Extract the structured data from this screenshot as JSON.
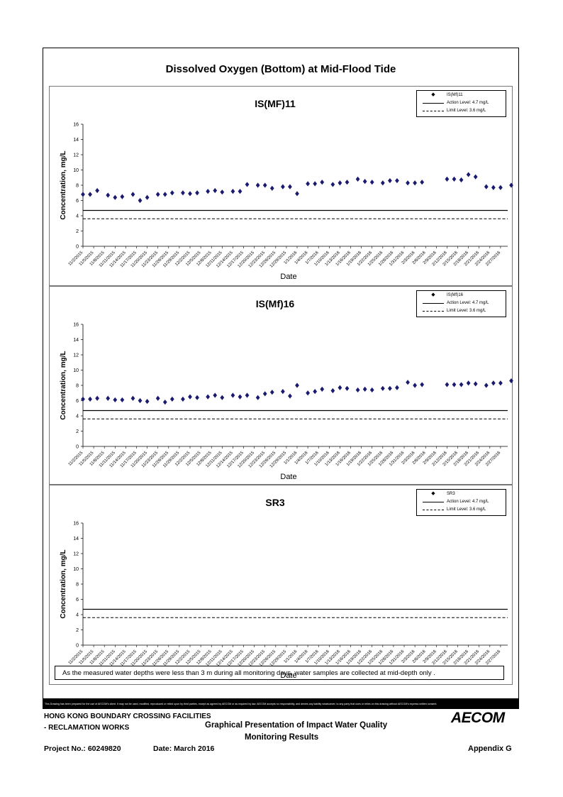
{
  "page": {
    "title": "Dissolved Oxygen (Bottom) at Mid-Flood Tide",
    "note": "As the measured water depths were less than 3 m during all monitoring days, water samples are collected  at mid-depth only .",
    "disclaimer": "This Drawing has been prepared for the use of AECOM's client. It may not be used, modified, reproduced or relied upon by third parties, except as agreed by AECOM or as required by law. AECOM accepts no responsibility, and denies any liability whatsoever, to any party that uses or relies on this drawing without AECOM's express written consent."
  },
  "footer": {
    "project_line1": "HONG KONG BOUNDARY CROSSING FACILITIES",
    "project_line2": "- RECLAMATION WORKS",
    "heading_line1": "Graphical Presentation of Impact Water Quality",
    "heading_line2": "Monitoring Results",
    "project_no": "Project No.: 60249820",
    "date": "Date: March 2016",
    "appendix": "Appendix G",
    "logo": "AECOM"
  },
  "chart_data": [
    {
      "type": "scatter",
      "title": "IS(MF)11",
      "xlabel": "Date",
      "ylabel": "Concentration, mg/L",
      "ylim": [
        0,
        16
      ],
      "yticks": [
        0,
        2,
        4,
        6,
        8,
        10,
        12,
        14,
        16
      ],
      "xlim": [
        "2015-11-02",
        "2016-02-29"
      ],
      "xtick_labels": [
        "11/2/2015",
        "11/5/2015",
        "11/8/2015",
        "11/11/2015",
        "11/14/2015",
        "11/17/2015",
        "11/20/2015",
        "11/23/2015",
        "11/26/2015",
        "11/29/2015",
        "12/2/2015",
        "12/5/2015",
        "12/8/2015",
        "12/11/2015",
        "12/14/2015",
        "12/17/2015",
        "12/20/2015",
        "12/23/2015",
        "12/26/2015",
        "12/29/2015",
        "1/1/2016",
        "1/4/2016",
        "1/7/2016",
        "1/10/2016",
        "1/13/2016",
        "1/16/2016",
        "1/19/2016",
        "1/22/2016",
        "1/25/2016",
        "1/28/2016",
        "1/31/2016",
        "2/3/2016",
        "2/6/2016",
        "2/9/2016",
        "2/12/2016",
        "2/15/2016",
        "2/18/2016",
        "2/21/2016",
        "2/24/2016",
        "2/27/2016"
      ],
      "legend": {
        "position": "top-right",
        "series": "IS(Mf)11",
        "action": "Action Level: 4.7 mg/L",
        "limit": "Limit Level: 3.6 mg/L"
      },
      "action_level": 4.7,
      "limit_level": 3.6,
      "series": [
        {
          "name": "IS(Mf)11",
          "points": [
            [
              "2015-11-02",
              6.8
            ],
            [
              "2015-11-04",
              6.8
            ],
            [
              "2015-11-06",
              7.3
            ],
            [
              "2015-11-09",
              6.7
            ],
            [
              "2015-11-11",
              6.4
            ],
            [
              "2015-11-13",
              6.5
            ],
            [
              "2015-11-16",
              6.8
            ],
            [
              "2015-11-18",
              6.0
            ],
            [
              "2015-11-20",
              6.4
            ],
            [
              "2015-11-23",
              6.8
            ],
            [
              "2015-11-25",
              6.8
            ],
            [
              "2015-11-27",
              7.0
            ],
            [
              "2015-11-30",
              7.0
            ],
            [
              "2015-12-02",
              6.9
            ],
            [
              "2015-12-04",
              7.0
            ],
            [
              "2015-12-07",
              7.2
            ],
            [
              "2015-12-09",
              7.3
            ],
            [
              "2015-12-11",
              7.1
            ],
            [
              "2015-12-14",
              7.2
            ],
            [
              "2015-12-16",
              7.2
            ],
            [
              "2015-12-18",
              8.1
            ],
            [
              "2015-12-21",
              8.0
            ],
            [
              "2015-12-23",
              8.0
            ],
            [
              "2015-12-25",
              7.6
            ],
            [
              "2015-12-28",
              7.8
            ],
            [
              "2015-12-30",
              7.8
            ],
            [
              "2016-01-01",
              6.9
            ],
            [
              "2016-01-04",
              8.2
            ],
            [
              "2016-01-06",
              8.2
            ],
            [
              "2016-01-08",
              8.4
            ],
            [
              "2016-01-11",
              8.1
            ],
            [
              "2016-01-13",
              8.3
            ],
            [
              "2016-01-15",
              8.4
            ],
            [
              "2016-01-18",
              8.8
            ],
            [
              "2016-01-20",
              8.5
            ],
            [
              "2016-01-22",
              8.4
            ],
            [
              "2016-01-25",
              8.3
            ],
            [
              "2016-01-27",
              8.6
            ],
            [
              "2016-01-29",
              8.6
            ],
            [
              "2016-02-01",
              8.3
            ],
            [
              "2016-02-03",
              8.3
            ],
            [
              "2016-02-05",
              8.4
            ],
            [
              "2016-02-12",
              8.8
            ],
            [
              "2016-02-14",
              8.8
            ],
            [
              "2016-02-16",
              8.7
            ],
            [
              "2016-02-18",
              9.4
            ],
            [
              "2016-02-20",
              9.1
            ],
            [
              "2016-02-23",
              7.8
            ],
            [
              "2016-02-25",
              7.7
            ],
            [
              "2016-02-27",
              7.7
            ],
            [
              "2016-03-01",
              8.0
            ]
          ]
        }
      ]
    },
    {
      "type": "scatter",
      "title": "IS(Mf)16",
      "xlabel": "Date",
      "ylabel": "Concentration, mg/L",
      "ylim": [
        0,
        16
      ],
      "yticks": [
        0,
        2,
        4,
        6,
        8,
        10,
        12,
        14,
        16
      ],
      "xlim": [
        "2015-11-02",
        "2016-02-29"
      ],
      "xtick_labels": [
        "11/2/2015",
        "11/5/2015",
        "11/8/2015",
        "11/11/2015",
        "11/14/2015",
        "11/17/2015",
        "11/20/2015",
        "11/23/2015",
        "11/26/2015",
        "11/29/2015",
        "12/2/2015",
        "12/5/2015",
        "12/8/2015",
        "12/11/2015",
        "12/14/2015",
        "12/17/2015",
        "12/20/2015",
        "12/23/2015",
        "12/26/2015",
        "12/29/2015",
        "1/1/2016",
        "1/4/2016",
        "1/7/2016",
        "1/10/2016",
        "1/13/2016",
        "1/16/2016",
        "1/19/2016",
        "1/22/2016",
        "1/25/2016",
        "1/28/2016",
        "1/31/2016",
        "2/3/2016",
        "2/6/2016",
        "2/9/2016",
        "2/12/2016",
        "2/15/2016",
        "2/18/2016",
        "2/21/2016",
        "2/24/2016",
        "2/27/2016"
      ],
      "legend": {
        "position": "top-right",
        "series": "IS(Mf)16",
        "action": "Action Level: 4.7 mg/L",
        "limit": "Limit Level: 3.6 mg/L"
      },
      "action_level": 4.7,
      "limit_level": 3.6,
      "series": [
        {
          "name": "IS(Mf)16",
          "points": [
            [
              "2015-11-02",
              6.2
            ],
            [
              "2015-11-04",
              6.2
            ],
            [
              "2015-11-06",
              6.3
            ],
            [
              "2015-11-09",
              6.3
            ],
            [
              "2015-11-11",
              6.1
            ],
            [
              "2015-11-13",
              6.1
            ],
            [
              "2015-11-16",
              6.3
            ],
            [
              "2015-11-18",
              6.0
            ],
            [
              "2015-11-20",
              5.9
            ],
            [
              "2015-11-23",
              6.3
            ],
            [
              "2015-11-25",
              5.8
            ],
            [
              "2015-11-27",
              6.2
            ],
            [
              "2015-11-30",
              6.2
            ],
            [
              "2015-12-02",
              6.5
            ],
            [
              "2015-12-04",
              6.4
            ],
            [
              "2015-12-07",
              6.5
            ],
            [
              "2015-12-09",
              6.7
            ],
            [
              "2015-12-11",
              6.4
            ],
            [
              "2015-12-14",
              6.7
            ],
            [
              "2015-12-16",
              6.5
            ],
            [
              "2015-12-18",
              6.7
            ],
            [
              "2015-12-21",
              6.4
            ],
            [
              "2015-12-23",
              6.9
            ],
            [
              "2015-12-25",
              7.1
            ],
            [
              "2015-12-28",
              7.2
            ],
            [
              "2015-12-30",
              6.6
            ],
            [
              "2016-01-01",
              8.0
            ],
            [
              "2016-01-04",
              7.0
            ],
            [
              "2016-01-06",
              7.2
            ],
            [
              "2016-01-08",
              7.5
            ],
            [
              "2016-01-11",
              7.3
            ],
            [
              "2016-01-13",
              7.7
            ],
            [
              "2016-01-15",
              7.6
            ],
            [
              "2016-01-18",
              7.4
            ],
            [
              "2016-01-20",
              7.5
            ],
            [
              "2016-01-22",
              7.4
            ],
            [
              "2016-01-25",
              7.6
            ],
            [
              "2016-01-27",
              7.6
            ],
            [
              "2016-01-29",
              7.7
            ],
            [
              "2016-02-01",
              8.4
            ],
            [
              "2016-02-03",
              8.0
            ],
            [
              "2016-02-05",
              8.1
            ],
            [
              "2016-02-12",
              8.1
            ],
            [
              "2016-02-14",
              8.1
            ],
            [
              "2016-02-16",
              8.1
            ],
            [
              "2016-02-18",
              8.3
            ],
            [
              "2016-02-20",
              8.2
            ],
            [
              "2016-02-23",
              8.0
            ],
            [
              "2016-02-25",
              8.3
            ],
            [
              "2016-02-27",
              8.3
            ],
            [
              "2016-03-01",
              8.6
            ]
          ]
        }
      ]
    },
    {
      "type": "scatter",
      "title": "SR3",
      "xlabel": "Date",
      "ylabel": "Concentration, mg/L",
      "ylim": [
        0,
        16
      ],
      "yticks": [
        0,
        2,
        4,
        6,
        8,
        10,
        12,
        14,
        16
      ],
      "xlim": [
        "2015-11-02",
        "2016-02-29"
      ],
      "xtick_labels": [
        "11/2/2015",
        "11/5/2015",
        "11/8/2015",
        "11/11/2015",
        "11/14/2015",
        "11/17/2015",
        "11/20/2015",
        "11/23/2015",
        "11/26/2015",
        "11/29/2015",
        "12/2/2015",
        "12/5/2015",
        "12/8/2015",
        "12/11/2015",
        "12/14/2015",
        "12/17/2015",
        "12/20/2015",
        "12/23/2015",
        "12/26/2015",
        "12/29/2015",
        "1/1/2016",
        "1/4/2016",
        "1/7/2016",
        "1/10/2016",
        "1/13/2016",
        "1/16/2016",
        "1/19/2016",
        "1/22/2016",
        "1/25/2016",
        "1/28/2016",
        "1/31/2016",
        "2/3/2016",
        "2/6/2016",
        "2/9/2016",
        "2/12/2016",
        "2/15/2016",
        "2/18/2016",
        "2/21/2016",
        "2/24/2016",
        "2/27/2016"
      ],
      "legend": {
        "position": "top-right",
        "series": "SR3",
        "action": "Action Level: 4.7 mg/L",
        "limit": "Limit Level: 3.6 mg/L"
      },
      "action_level": 4.7,
      "limit_level": 3.6,
      "series": [
        {
          "name": "SR3",
          "points": []
        }
      ]
    }
  ]
}
